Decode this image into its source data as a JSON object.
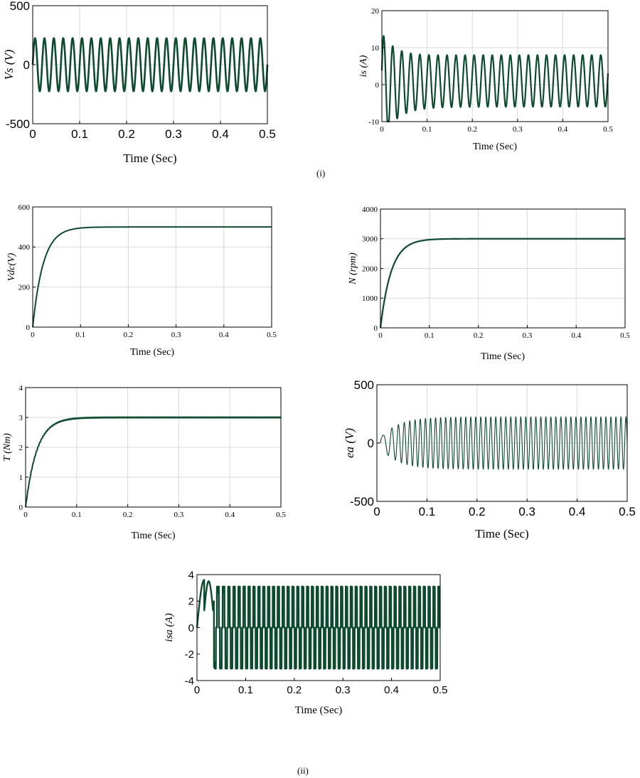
{
  "captions": {
    "part1": "(i)",
    "part2": "(ii)"
  },
  "style": {
    "trace_color": "#0d4a2e",
    "grid_color": "#d9d9d9",
    "axis_color": "#000000"
  },
  "chart_data": [
    {
      "id": "vs",
      "type": "line",
      "title": "",
      "xlabel": "Time (Sec)",
      "ylabel": "Vs (V)",
      "xlim": [
        0,
        0.5
      ],
      "ylim": [
        -500,
        500
      ],
      "xticks": [
        "0",
        "0.1",
        "0.2",
        "0.3",
        "0.4",
        "0.5"
      ],
      "yticks": [
        "-500",
        "0",
        "500"
      ],
      "grid": true,
      "signal": {
        "kind": "sine",
        "amplitude": 225,
        "frequency_hz": 50,
        "description": "steady supply voltage"
      }
    },
    {
      "id": "is",
      "type": "line",
      "title": "",
      "xlabel": "Time (Sec)",
      "ylabel": "is (A)",
      "xlim": [
        0,
        0.5
      ],
      "ylim": [
        -10,
        20
      ],
      "xticks": [
        "0",
        "0.1",
        "0.2",
        "0.3",
        "0.4",
        "0.5"
      ],
      "yticks": [
        "-10",
        "0",
        "10",
        "20"
      ],
      "grid": true,
      "signal": {
        "kind": "sine_with_decaying_inrush",
        "steady_amplitude": 7,
        "offset": 1,
        "initial_peak": 14.5,
        "frequency_hz": 50
      }
    },
    {
      "id": "vdc",
      "type": "line",
      "title": "",
      "xlabel": "Time (Sec)",
      "ylabel": "Vdc(V)",
      "xlim": [
        0,
        0.5
      ],
      "ylim": [
        0,
        600
      ],
      "xticks": [
        "0",
        "0.1",
        "0.2",
        "0.3",
        "0.4",
        "0.5"
      ],
      "yticks": [
        "0",
        "200",
        "400",
        "600"
      ],
      "grid": true,
      "signal": {
        "kind": "first_order_rise",
        "final_value": 500,
        "settling_time_s": 0.1
      }
    },
    {
      "id": "speed",
      "type": "line",
      "title": "",
      "xlabel": "Time (Sec)",
      "ylabel": "N (rpm)",
      "xlim": [
        0,
        0.5
      ],
      "ylim": [
        0,
        4000
      ],
      "xticks": [
        "0",
        "0.1",
        "0.2",
        "0.3",
        "0.4",
        "0.5"
      ],
      "yticks": [
        "0",
        "1000",
        "2000",
        "3000",
        "4000"
      ],
      "grid": true,
      "signal": {
        "kind": "first_order_rise",
        "final_value": 3000,
        "settling_time_s": 0.1
      }
    },
    {
      "id": "torque",
      "type": "line",
      "title": "",
      "xlabel": "Time (Sec)",
      "ylabel": "T (Nm)",
      "xlim": [
        0,
        0.5
      ],
      "ylim": [
        0,
        4
      ],
      "xticks": [
        "0",
        "0.1",
        "0.2",
        "0.3",
        "0.4",
        "0.5"
      ],
      "yticks": [
        "0",
        "1",
        "2",
        "3",
        "4"
      ],
      "grid": true,
      "signal": {
        "kind": "first_order_rise",
        "final_value": 3,
        "settling_time_s": 0.1
      }
    },
    {
      "id": "ea",
      "type": "line",
      "title": "",
      "xlabel": "Time (Sec)",
      "ylabel": "ea (V)",
      "xlim": [
        0,
        0.5
      ],
      "ylim": [
        -500,
        500
      ],
      "xticks": [
        "0",
        "0.1",
        "0.2",
        "0.3",
        "0.4",
        "0.5"
      ],
      "yticks": [
        "-500",
        "0",
        "500"
      ],
      "grid": true,
      "signal": {
        "kind": "sine_with_rising_amplitude_and_frequency",
        "final_amplitude": 225,
        "final_frequency_hz": 100
      }
    },
    {
      "id": "isa",
      "type": "line",
      "title": "",
      "xlabel": "Time (Sec)",
      "ylabel": "isa (A)",
      "xlim": [
        0,
        0.5
      ],
      "ylim": [
        -4,
        4
      ],
      "xticks": [
        "0",
        "0.1",
        "0.2",
        "0.3",
        "0.4",
        "0.5"
      ],
      "yticks": [
        "-4",
        "-2",
        "0",
        "2",
        "4"
      ],
      "grid": false,
      "signal": {
        "kind": "quasi_square_phase_current",
        "initial_peak": 3.6,
        "steady_amplitude": 3,
        "final_frequency_hz": 100
      }
    }
  ]
}
